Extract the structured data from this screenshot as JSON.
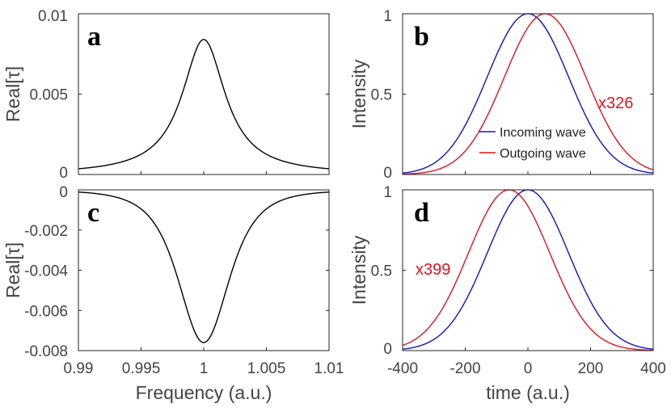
{
  "chart_data": [
    {
      "id": "a",
      "type": "line",
      "panel_label": "a",
      "ylabel": "Real[τ]",
      "xlabel": "",
      "xlim": [
        0.99,
        1.01
      ],
      "ylim": [
        0,
        0.01
      ],
      "yticks": [
        "0",
        "0.005",
        "0.01"
      ],
      "ytick_values": [
        0,
        0.005,
        0.01
      ],
      "xticks": [],
      "xtick_values": [],
      "series": [
        {
          "name": "Real[τ]",
          "color": "#000000",
          "shape": "lorentzian",
          "center": 1.0,
          "peak": 0.0084,
          "halfwidth": 0.0021
        }
      ]
    },
    {
      "id": "b",
      "type": "line",
      "panel_label": "b",
      "ylabel": "Intensity",
      "xlabel": "",
      "xlim": [
        -400,
        400
      ],
      "ylim": [
        0,
        1
      ],
      "yticks": [
        "0",
        "0.5",
        "1"
      ],
      "ytick_values": [
        0,
        0.5,
        1
      ],
      "xticks": [],
      "xtick_values": [],
      "annotation": {
        "text": "x326",
        "color": "#e8101a"
      },
      "legend": {
        "position": "lower-center",
        "entries": [
          "Incoming wave",
          "Outgoing wave"
        ]
      },
      "series": [
        {
          "name": "Incoming wave",
          "color": "#1010d0",
          "shape": "gaussian",
          "center": 0,
          "sigma": 130
        },
        {
          "name": "Outgoing wave",
          "color": "#e8101a",
          "shape": "gaussian",
          "center": 55,
          "sigma": 130
        }
      ]
    },
    {
      "id": "c",
      "type": "line",
      "panel_label": "c",
      "ylabel": "Real[τ]",
      "xlabel": "Frequency (a.u.)",
      "xlim": [
        0.99,
        1.01
      ],
      "ylim": [
        -0.008,
        0
      ],
      "yticks": [
        "0",
        "-0.002",
        "-0.004",
        "-0.006",
        "-0.008"
      ],
      "ytick_values": [
        0,
        -0.002,
        -0.004,
        -0.006,
        -0.008
      ],
      "xticks": [
        "0.99",
        "0.995",
        "1",
        "1.005",
        "1.01"
      ],
      "xtick_values": [
        0.99,
        0.995,
        1,
        1.005,
        1.01
      ],
      "series": [
        {
          "name": "Real[τ]",
          "color": "#000000",
          "shape": "lorentzian_sq",
          "center": 1.0,
          "peak": -0.0076,
          "halfwidth": 0.0037
        }
      ]
    },
    {
      "id": "d",
      "type": "line",
      "panel_label": "d",
      "ylabel": "Intensity",
      "xlabel": "time (a.u.)",
      "xlim": [
        -400,
        400
      ],
      "ylim": [
        0,
        1
      ],
      "yticks": [
        "0",
        "0.5",
        "1"
      ],
      "ytick_values": [
        0,
        0.5,
        1
      ],
      "xticks": [
        "-400",
        "-200",
        "0",
        "200",
        "400"
      ],
      "xtick_values": [
        -400,
        -200,
        0,
        200,
        400
      ],
      "annotation": {
        "text": "x399",
        "color": "#e8101a"
      },
      "series": [
        {
          "name": "Incoming wave",
          "color": "#1010d0",
          "shape": "gaussian",
          "center": 0,
          "sigma": 130
        },
        {
          "name": "Outgoing wave",
          "color": "#e8101a",
          "shape": "gaussian",
          "center": -60,
          "sigma": 130
        }
      ]
    }
  ]
}
